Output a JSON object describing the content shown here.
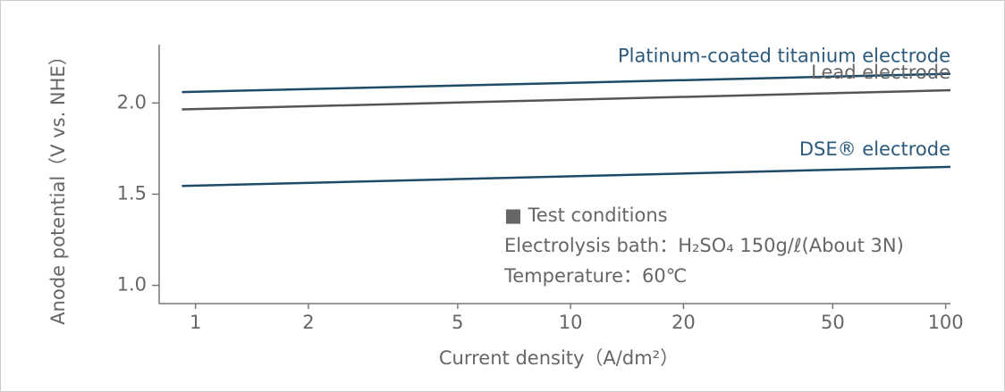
{
  "chart_data": {
    "type": "line",
    "xlabel": "Current density（A/dm²）",
    "ylabel": "Anode potential（V vs. NHE）",
    "x": [
      0.92,
      103
    ],
    "series": [
      {
        "name": "Platinum-coated titanium electrode",
        "color": "#1f4a68",
        "values": [
          2.06,
          2.16
        ]
      },
      {
        "name": "Lead electrode",
        "color": "#555555",
        "values": [
          1.965,
          2.07
        ]
      },
      {
        "name": "DSE® electrode",
        "color": "#1f4a68",
        "values": [
          1.545,
          1.65
        ]
      }
    ],
    "xscale": "log",
    "xlim": [
      0.8,
      103
    ],
    "xticks": [
      1,
      2,
      5,
      10,
      20,
      50,
      100
    ],
    "ylim": [
      0.9,
      2.32
    ],
    "yticks": [
      {
        "value": 1.0,
        "label": "1.0"
      },
      1.5,
      {
        "value": 2.0,
        "label": "2.0"
      }
    ],
    "grid": false,
    "annotations": [
      "■ Test conditions",
      "Electrolysis bath：H₂SO₄ 150g/ℓ(About 3N)",
      "Temperature：60℃"
    ]
  }
}
